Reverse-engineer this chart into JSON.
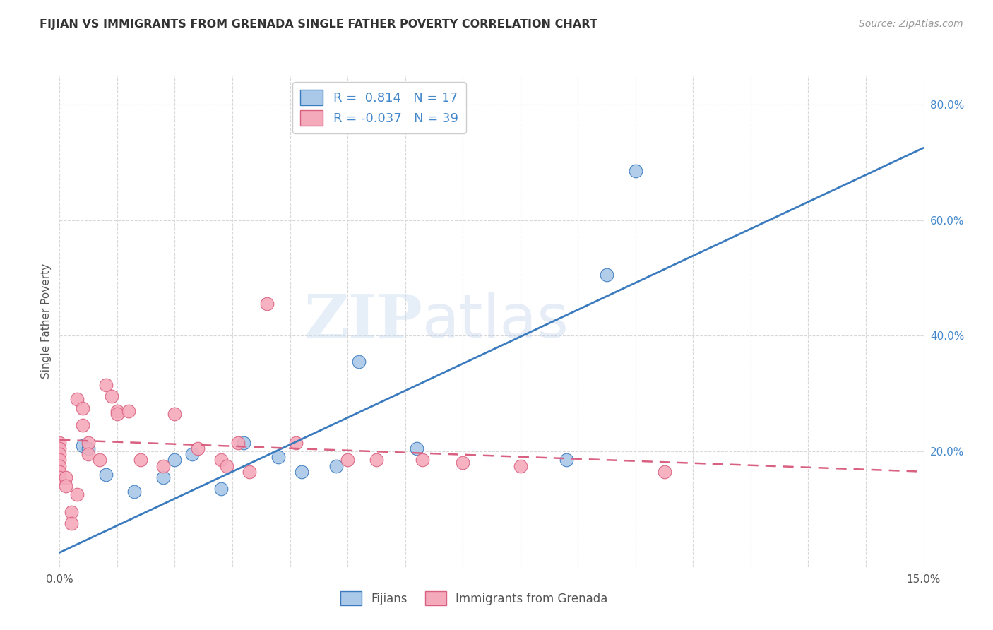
{
  "title": "FIJIAN VS IMMIGRANTS FROM GRENADA SINGLE FATHER POVERTY CORRELATION CHART",
  "source": "Source: ZipAtlas.com",
  "ylabel": "Single Father Poverty",
  "xlim": [
    0.0,
    0.15
  ],
  "ylim": [
    0.0,
    0.85
  ],
  "legend_label1": "Fijians",
  "legend_label2": "Immigrants from Grenada",
  "R1": 0.814,
  "N1": 17,
  "R2": -0.037,
  "N2": 39,
  "color_fijian": "#aac8e8",
  "color_grenada": "#f5aabb",
  "color_line_fijian": "#3a7bbf",
  "color_line_grenada": "#d96080",
  "watermark_zip": "ZIP",
  "watermark_atlas": "atlas",
  "fijian_x": [
    0.004,
    0.005,
    0.008,
    0.013,
    0.018,
    0.02,
    0.023,
    0.028,
    0.032,
    0.038,
    0.042,
    0.048,
    0.052,
    0.062,
    0.088,
    0.095,
    0.1
  ],
  "fijian_y": [
    0.21,
    0.205,
    0.16,
    0.13,
    0.155,
    0.185,
    0.195,
    0.135,
    0.215,
    0.19,
    0.165,
    0.175,
    0.355,
    0.205,
    0.185,
    0.505,
    0.685
  ],
  "grenada_x": [
    0.0,
    0.0,
    0.0,
    0.0,
    0.0,
    0.0,
    0.0,
    0.001,
    0.001,
    0.002,
    0.002,
    0.003,
    0.003,
    0.004,
    0.004,
    0.005,
    0.005,
    0.007,
    0.008,
    0.009,
    0.01,
    0.01,
    0.012,
    0.014,
    0.018,
    0.02,
    0.024,
    0.028,
    0.029,
    0.031,
    0.033,
    0.036,
    0.041,
    0.05,
    0.055,
    0.063,
    0.07,
    0.08,
    0.105
  ],
  "grenada_y": [
    0.215,
    0.205,
    0.195,
    0.185,
    0.175,
    0.165,
    0.155,
    0.155,
    0.14,
    0.095,
    0.075,
    0.125,
    0.29,
    0.275,
    0.245,
    0.215,
    0.195,
    0.185,
    0.315,
    0.295,
    0.27,
    0.265,
    0.27,
    0.185,
    0.175,
    0.265,
    0.205,
    0.185,
    0.175,
    0.215,
    0.165,
    0.455,
    0.215,
    0.185,
    0.185,
    0.185,
    0.18,
    0.175,
    0.165
  ],
  "fijian_line_x0": 0.0,
  "fijian_line_y0": 0.025,
  "fijian_line_x1": 0.15,
  "fijian_line_y1": 0.725,
  "grenada_line_x0": 0.0,
  "grenada_line_y0": 0.22,
  "grenada_line_x1": 0.15,
  "grenada_line_y1": 0.165,
  "background_color": "#ffffff",
  "grid_color": "#d8d8d8",
  "yticks_right": [
    0.2,
    0.4,
    0.6,
    0.8
  ],
  "ytick_labels_right": [
    "20.0%",
    "40.0%",
    "60.0%",
    "80.0%"
  ],
  "xticks": [
    0.0,
    0.15
  ],
  "xtick_labels": [
    "0.0%",
    "15.0%"
  ]
}
